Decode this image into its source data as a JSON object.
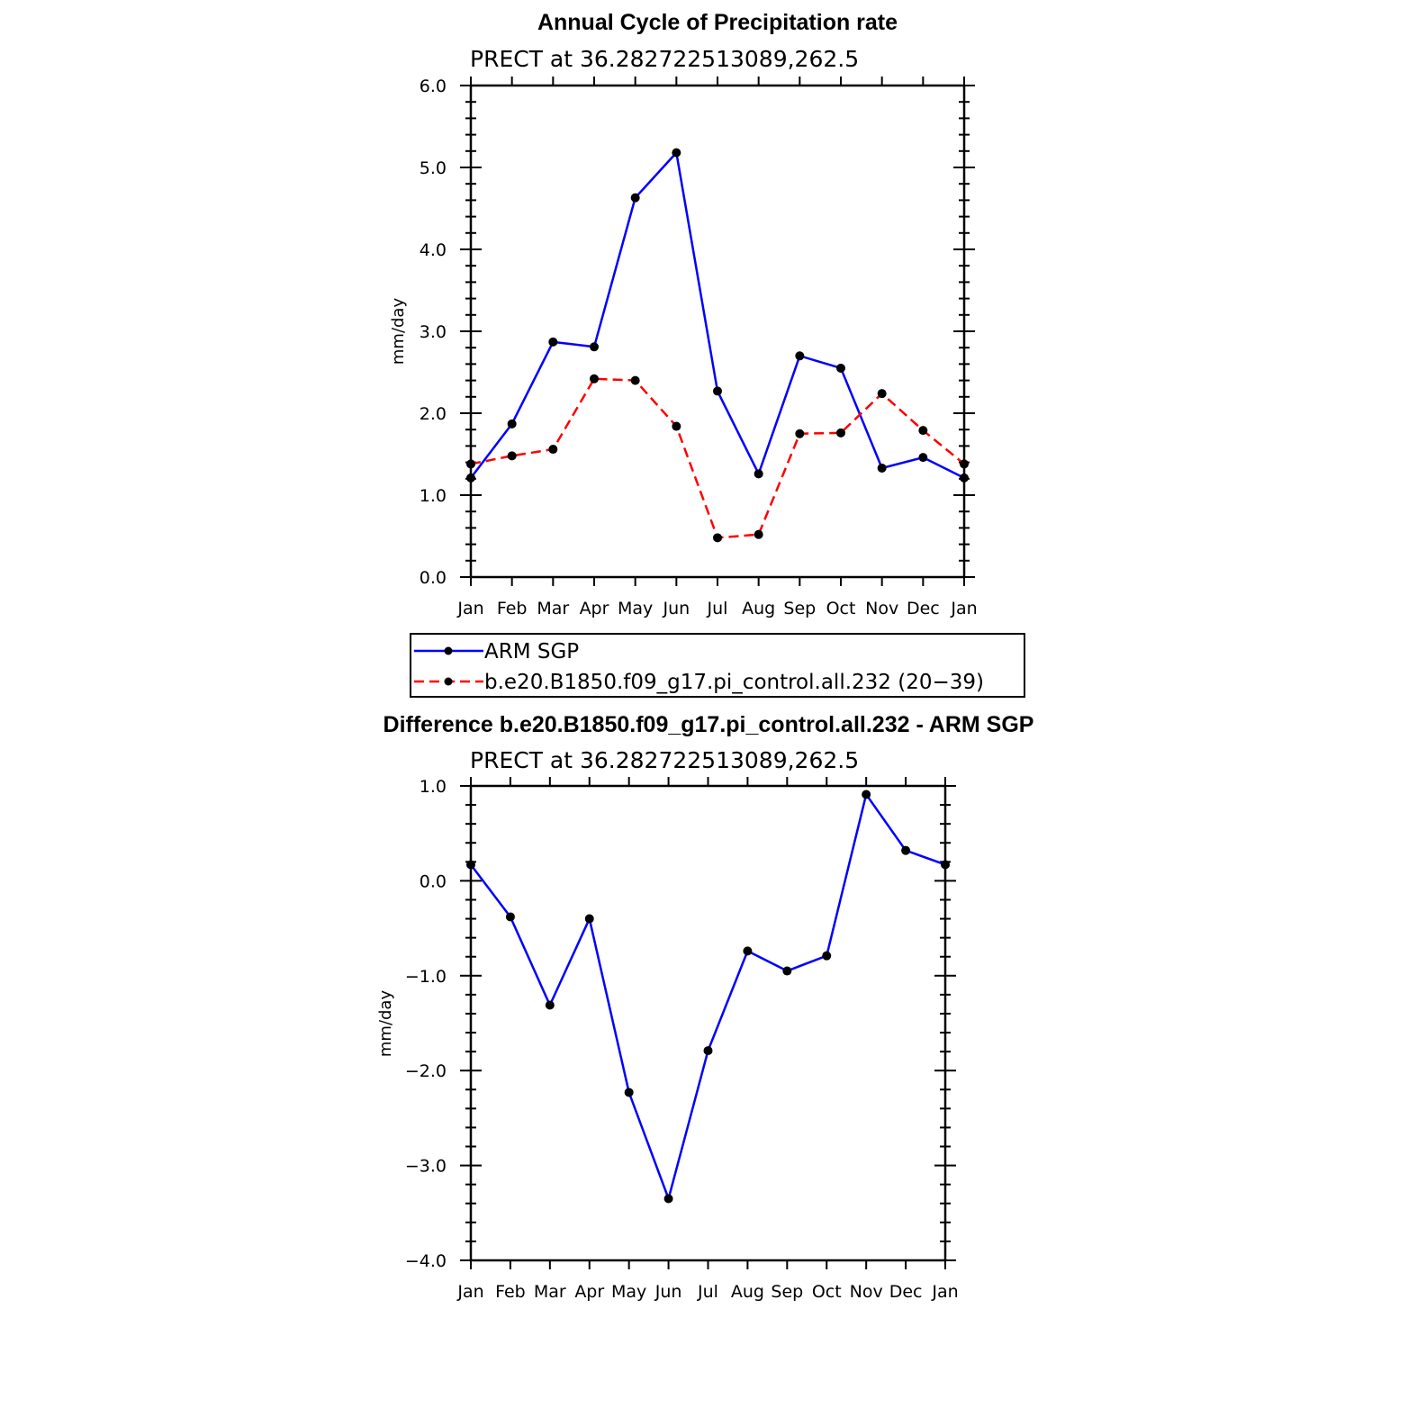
{
  "chart_data": [
    {
      "type": "line",
      "title": "Annual Cycle of Precipitation rate",
      "subtitle": "PRECT at 36.282722513089,262.5",
      "xlabel": "",
      "ylabel": "mm/day",
      "categories": [
        "Jan",
        "Feb",
        "Mar",
        "Apr",
        "May",
        "Jun",
        "Jul",
        "Aug",
        "Sep",
        "Oct",
        "Nov",
        "Dec",
        "Jan"
      ],
      "ylim": [
        0.0,
        6.0
      ],
      "yticks": [
        "0.0",
        "1.0",
        "2.0",
        "3.0",
        "4.0",
        "5.0",
        "6.0"
      ],
      "grid": false,
      "legend_position": "bottom",
      "series": [
        {
          "name": "ARM SGP",
          "color": "#0000ff",
          "dash": "solid",
          "values": [
            1.21,
            1.87,
            2.87,
            2.81,
            4.63,
            5.18,
            2.27,
            1.26,
            2.7,
            2.55,
            1.33,
            1.46,
            1.21
          ]
        },
        {
          "name": "b.e20.B1850.f09_g17.pi_control.all.232 (20−39)",
          "color": "#ff0000",
          "dash": "dashed",
          "values": [
            1.38,
            1.48,
            1.56,
            2.42,
            2.4,
            1.84,
            0.48,
            0.52,
            1.75,
            1.76,
            2.24,
            1.79,
            1.38
          ]
        }
      ]
    },
    {
      "type": "line",
      "title": "Difference b.e20.B1850.f09_g17.pi_control.all.232 - ARM SGP",
      "subtitle": "PRECT at 36.282722513089,262.5",
      "xlabel": "",
      "ylabel": "mm/day",
      "categories": [
        "Jan",
        "Feb",
        "Mar",
        "Apr",
        "May",
        "Jun",
        "Jul",
        "Aug",
        "Sep",
        "Oct",
        "Nov",
        "Dec",
        "Jan"
      ],
      "ylim": [
        -4.0,
        1.0
      ],
      "yticks": [
        "−4.0",
        "−3.0",
        "−2.0",
        "−1.0",
        "0.0",
        "1.0"
      ],
      "grid": false,
      "series": [
        {
          "name": "",
          "color": "#0000ff",
          "dash": "solid",
          "values": [
            0.17,
            -0.38,
            -1.31,
            -0.4,
            -2.23,
            -3.35,
            -1.79,
            -0.74,
            -0.95,
            -0.79,
            0.91,
            0.32,
            0.17
          ]
        }
      ]
    }
  ]
}
